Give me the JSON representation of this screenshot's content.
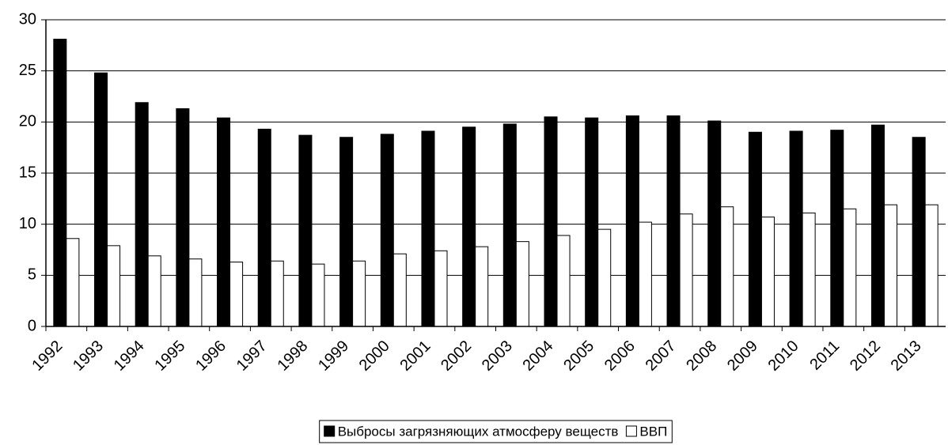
{
  "chart_data": {
    "type": "bar",
    "categories": [
      "1992",
      "1993",
      "1994",
      "1995",
      "1996",
      "1997",
      "1998",
      "1999",
      "2000",
      "2001",
      "2002",
      "2003",
      "2004",
      "2005",
      "2006",
      "2007",
      "2008",
      "2009",
      "2010",
      "2011",
      "2012",
      "2013"
    ],
    "series": [
      {
        "name": "Выбросы загрязняющих атмосферу веществ",
        "color": "#000000",
        "values": [
          28.1,
          24.8,
          21.9,
          21.3,
          20.4,
          19.3,
          18.7,
          18.5,
          18.8,
          19.1,
          19.5,
          19.8,
          20.5,
          20.4,
          20.6,
          20.6,
          20.1,
          19.0,
          19.1,
          19.2,
          19.7,
          18.5
        ]
      },
      {
        "name": "ВВП",
        "color": "#ffffff",
        "values": [
          8.6,
          7.9,
          6.9,
          6.6,
          6.3,
          6.4,
          6.1,
          6.4,
          7.1,
          7.4,
          7.8,
          8.3,
          8.9,
          9.5,
          10.2,
          11.0,
          11.7,
          10.7,
          11.1,
          11.5,
          11.9,
          11.9
        ]
      }
    ],
    "ylim": [
      0,
      30
    ],
    "yticks": [
      0,
      5,
      10,
      15,
      20,
      25,
      30
    ],
    "grid": true,
    "legend": "bottom"
  }
}
